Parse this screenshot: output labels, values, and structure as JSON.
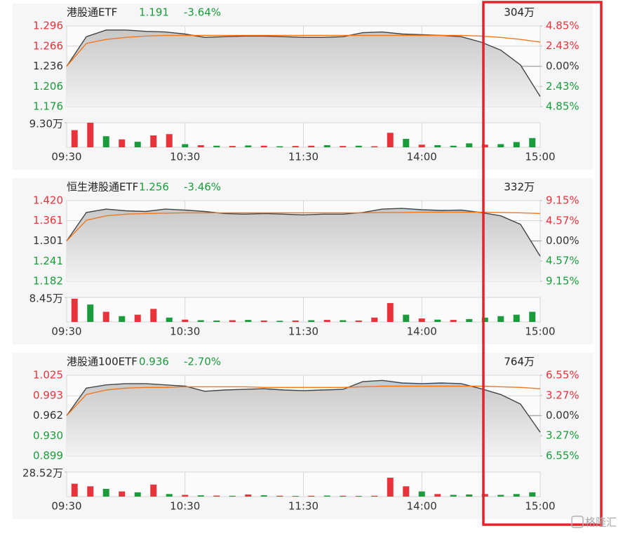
{
  "chart_data": [
    {
      "type": "line",
      "title": "港股通ETF",
      "price": "1.191",
      "change": "-3.64%",
      "turnover": "304万",
      "x": [
        0,
        10,
        20,
        30,
        40,
        50,
        60,
        70,
        80,
        90,
        100,
        110,
        120,
        130,
        140,
        150,
        160,
        170,
        180,
        190,
        200,
        210,
        220,
        230,
        240
      ],
      "xlim": [
        0,
        240
      ],
      "xticks": [
        {
          "value": 0,
          "label": "09:30"
        },
        {
          "value": 60,
          "label": "10:30"
        },
        {
          "value": 120,
          "label": "11:30"
        },
        {
          "value": 180,
          "label": "14:00"
        },
        {
          "value": 240,
          "label": "15:00"
        }
      ],
      "ylim": [
        1.176,
        1.296
      ],
      "yticks": [
        1.296,
        1.266,
        1.236,
        1.206,
        1.176
      ],
      "y2lim": [
        -4.85,
        4.85
      ],
      "y2ticks": [
        {
          "value": 4.85,
          "label": "4.85%"
        },
        {
          "value": 2.43,
          "label": "2.43%"
        },
        {
          "value": 0,
          "label": "0.00%"
        },
        {
          "value": -2.43,
          "label": "2.43%"
        },
        {
          "value": -4.85,
          "label": "4.85%"
        }
      ],
      "series": [
        {
          "color": "#444444",
          "values": [
            1.236,
            1.28,
            1.29,
            1.29,
            1.288,
            1.287,
            1.284,
            1.279,
            1.28,
            1.281,
            1.281,
            1.28,
            1.279,
            1.279,
            1.28,
            1.286,
            1.287,
            1.284,
            1.283,
            1.282,
            1.28,
            1.272,
            1.26,
            1.238,
            1.191
          ]
        },
        {
          "color": "#f07820",
          "values": [
            1.236,
            1.27,
            1.276,
            1.279,
            1.281,
            1.282,
            1.282,
            1.282,
            1.282,
            1.282,
            1.282,
            1.282,
            1.282,
            1.282,
            1.282,
            1.282,
            1.282,
            1.282,
            1.282,
            1.282,
            1.282,
            1.281,
            1.279,
            1.276,
            1.272
          ]
        }
      ],
      "volume": {
        "ylim": [
          0,
          9.3
        ],
        "yticks": [
          {
            "value": 9.3,
            "label": "9.30万"
          }
        ],
        "values": [
          6.5,
          9.3,
          4.2,
          3.0,
          2.1,
          4.5,
          5.0,
          1.2,
          0.8,
          0.6,
          0.5,
          0.7,
          0.6,
          0.4,
          0.5,
          0.6,
          0.8,
          0.5,
          0.6,
          0.4,
          5.5,
          3.2,
          1.0,
          0.8,
          0.6,
          1.5,
          1.0,
          1.2,
          2.0,
          3.5
        ],
        "colors": [
          "#e8333c",
          "#e8333c",
          "#1a9c3c",
          "#e8333c",
          "#1a9c3c",
          "#e8333c",
          "#e8333c",
          "#1a9c3c",
          "#e8333c",
          "#1a9c3c",
          "#e8333c",
          "#1a9c3c",
          "#e8333c",
          "#1a9c3c",
          "#e8333c",
          "#e8333c",
          "#1a9c3c",
          "#e8333c",
          "#1a9c3c",
          "#e8333c",
          "#e8333c",
          "#1a9c3c",
          "#e8333c",
          "#1a9c3c",
          "#1a9c3c",
          "#1a9c3c",
          "#e8333c",
          "#1a9c3c",
          "#1a9c3c",
          "#1a9c3c"
        ]
      }
    },
    {
      "type": "line",
      "title": "恒生港股通ETF",
      "price": "1.256",
      "change": "-3.46%",
      "turnover": "332万",
      "x": [
        0,
        10,
        20,
        30,
        40,
        50,
        60,
        70,
        80,
        90,
        100,
        110,
        120,
        130,
        140,
        150,
        160,
        170,
        180,
        190,
        200,
        210,
        220,
        230,
        240
      ],
      "xlim": [
        0,
        240
      ],
      "xticks": [
        {
          "value": 0,
          "label": "09:30"
        },
        {
          "value": 60,
          "label": "10:30"
        },
        {
          "value": 120,
          "label": "11:30"
        },
        {
          "value": 180,
          "label": "14:00"
        },
        {
          "value": 240,
          "label": "15:00"
        }
      ],
      "ylim": [
        1.182,
        1.42
      ],
      "yticks": [
        {
          "value": 1.42,
          "label": "1.420"
        },
        1.361,
        1.301,
        1.241,
        1.182
      ],
      "y2lim": [
        -9.15,
        9.15
      ],
      "y2ticks": [
        {
          "value": 9.15,
          "label": "9.15%"
        },
        {
          "value": 4.57,
          "label": "4.57%"
        },
        {
          "value": 0,
          "label": "0.00%"
        },
        {
          "value": -4.57,
          "label": "4.57%"
        },
        {
          "value": -9.15,
          "label": "9.15%"
        }
      ],
      "series": [
        {
          "color": "#444444",
          "values": [
            1.301,
            1.385,
            1.395,
            1.39,
            1.388,
            1.395,
            1.392,
            1.388,
            1.382,
            1.38,
            1.382,
            1.38,
            1.378,
            1.38,
            1.38,
            1.385,
            1.395,
            1.397,
            1.393,
            1.391,
            1.392,
            1.385,
            1.375,
            1.35,
            1.256
          ]
        },
        {
          "color": "#f07820",
          "values": [
            1.301,
            1.362,
            1.375,
            1.38,
            1.382,
            1.383,
            1.384,
            1.384,
            1.384,
            1.384,
            1.384,
            1.384,
            1.384,
            1.384,
            1.384,
            1.384,
            1.385,
            1.385,
            1.386,
            1.386,
            1.386,
            1.386,
            1.385,
            1.384,
            1.382
          ]
        }
      ],
      "volume": {
        "ylim": [
          0,
          8.45
        ],
        "yticks": [
          {
            "value": 8.45,
            "label": "8.45万"
          }
        ],
        "values": [
          8.0,
          6.0,
          3.5,
          2.0,
          2.5,
          4.5,
          1.5,
          0.8,
          0.6,
          0.5,
          0.6,
          0.7,
          0.5,
          0.4,
          0.5,
          0.6,
          0.7,
          0.6,
          0.5,
          1.5,
          6.5,
          2.5,
          1.2,
          0.8,
          0.7,
          1.0,
          1.5,
          2.0,
          2.5,
          3.5
        ],
        "colors": [
          "#e8333c",
          "#1a9c3c",
          "#e8333c",
          "#1a9c3c",
          "#e8333c",
          "#e8333c",
          "#1a9c3c",
          "#e8333c",
          "#1a9c3c",
          "#1a9c3c",
          "#e8333c",
          "#1a9c3c",
          "#e8333c",
          "#1a9c3c",
          "#e8333c",
          "#1a9c3c",
          "#e8333c",
          "#1a9c3c",
          "#e8333c",
          "#e8333c",
          "#e8333c",
          "#1a9c3c",
          "#e8333c",
          "#1a9c3c",
          "#e8333c",
          "#1a9c3c",
          "#1a9c3c",
          "#1a9c3c",
          "#1a9c3c",
          "#1a9c3c"
        ]
      }
    },
    {
      "type": "line",
      "title": "港股通100ETF",
      "price": "0.936",
      "change": "-2.70%",
      "turnover": "764万",
      "x": [
        0,
        10,
        20,
        30,
        40,
        50,
        60,
        70,
        80,
        90,
        100,
        110,
        120,
        130,
        140,
        150,
        160,
        170,
        180,
        190,
        200,
        210,
        220,
        230,
        240
      ],
      "xlim": [
        0,
        240
      ],
      "xticks": [
        {
          "value": 0,
          "label": "09:30"
        },
        {
          "value": 60,
          "label": "10:30"
        },
        {
          "value": 120,
          "label": "11:30"
        },
        {
          "value": 180,
          "label": "14:00"
        },
        {
          "value": 240,
          "label": "15:00"
        }
      ],
      "ylim": [
        0.899,
        1.025
      ],
      "yticks": [
        1.025,
        0.993,
        0.962,
        {
          "value": 0.93,
          "label": "0.930"
        },
        0.899
      ],
      "y2lim": [
        -6.55,
        6.55
      ],
      "y2ticks": [
        {
          "value": 6.55,
          "label": "6.55%"
        },
        {
          "value": 3.27,
          "label": "3.27%"
        },
        {
          "value": 0,
          "label": "0.00%"
        },
        {
          "value": -3.27,
          "label": "3.27%"
        },
        {
          "value": -6.55,
          "label": "6.55%"
        }
      ],
      "series": [
        {
          "color": "#444444",
          "values": [
            0.962,
            1.005,
            1.01,
            1.012,
            1.012,
            1.01,
            1.008,
            1.0,
            1.002,
            1.003,
            1.004,
            1.002,
            1.001,
            1.002,
            1.003,
            1.015,
            1.017,
            1.013,
            1.012,
            1.013,
            1.012,
            1.004,
            0.995,
            0.98,
            0.936
          ]
        },
        {
          "color": "#f07820",
          "values": [
            0.962,
            0.995,
            1.002,
            1.005,
            1.006,
            1.006,
            1.007,
            1.007,
            1.007,
            1.007,
            1.006,
            1.006,
            1.006,
            1.006,
            1.006,
            1.007,
            1.008,
            1.008,
            1.008,
            1.008,
            1.008,
            1.008,
            1.007,
            1.006,
            1.004
          ]
        }
      ],
      "volume": {
        "ylim": [
          0,
          28.52
        ],
        "yticks": [
          {
            "value": 28.52,
            "label": "28.52万"
          }
        ],
        "values": [
          15,
          12,
          9,
          6,
          5,
          14,
          3,
          2,
          1.5,
          1.2,
          1.0,
          2.5,
          1.5,
          1.0,
          0.8,
          1.0,
          1.2,
          1.0,
          0.8,
          1.0,
          22,
          12,
          6,
          3,
          2,
          2.5,
          3,
          2,
          3,
          5
        ],
        "colors": [
          "#e8333c",
          "#e8333c",
          "#1a9c3c",
          "#e8333c",
          "#1a9c3c",
          "#e8333c",
          "#1a9c3c",
          "#e8333c",
          "#1a9c3c",
          "#e8333c",
          "#1a9c3c",
          "#e8333c",
          "#1a9c3c",
          "#e8333c",
          "#1a9c3c",
          "#e8333c",
          "#1a9c3c",
          "#e8333c",
          "#1a9c3c",
          "#e8333c",
          "#e8333c",
          "#e8333c",
          "#1a9c3c",
          "#e8333c",
          "#1a9c3c",
          "#1a9c3c",
          "#e8333c",
          "#1a9c3c",
          "#1a9c3c",
          "#1a9c3c"
        ]
      }
    }
  ],
  "watermark": "格隆汇"
}
